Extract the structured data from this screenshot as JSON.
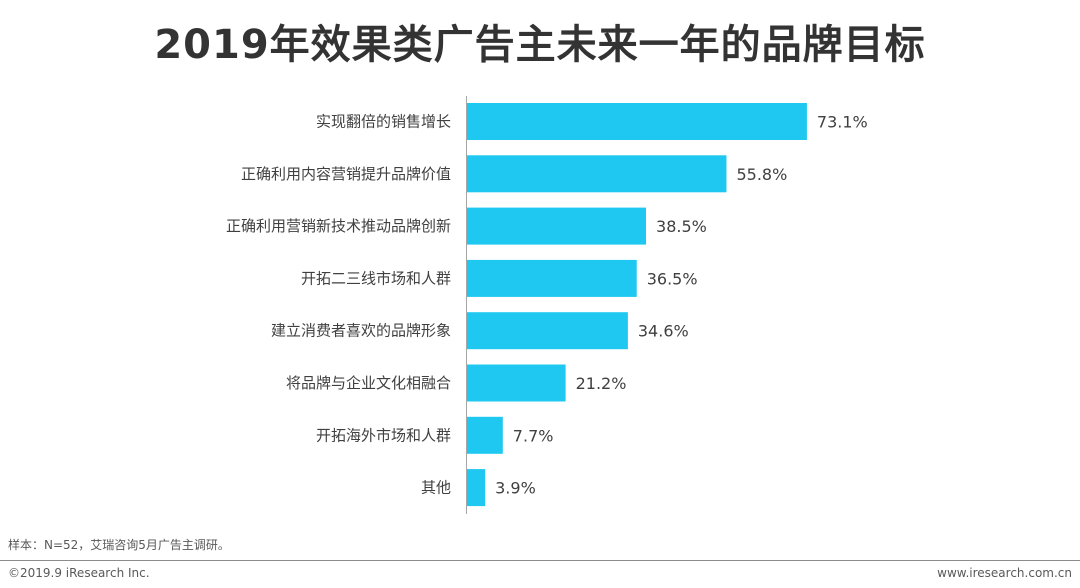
{
  "chart_data": {
    "type": "bar",
    "orientation": "horizontal",
    "title": "2019年效果类广告主未来一年的品牌目标",
    "categories": [
      "实现翻倍的销售增长",
      "正确利用内容营销提升品牌价值",
      "正确利用营销新技术推动品牌创新",
      "开拓二三线市场和人群",
      "建立消费者喜欢的品牌形象",
      "将品牌与企业文化相融合",
      "开拓海外市场和人群",
      "其他"
    ],
    "values": [
      73.1,
      55.8,
      38.5,
      36.5,
      34.6,
      21.2,
      7.7,
      3.9
    ],
    "value_labels": [
      "73.1%",
      "55.8%",
      "38.5%",
      "36.5%",
      "34.6%",
      "21.2%",
      "7.7%",
      "3.9%"
    ],
    "xlim": [
      0,
      100
    ],
    "bar_color": "#1fc8f0",
    "grid": false
  },
  "footer": {
    "source": "样本：N=52，艾瑞咨询5月广告主调研。",
    "copyright": "©2019.9 iResearch Inc.",
    "website": "www.iresearch.com.cn"
  }
}
